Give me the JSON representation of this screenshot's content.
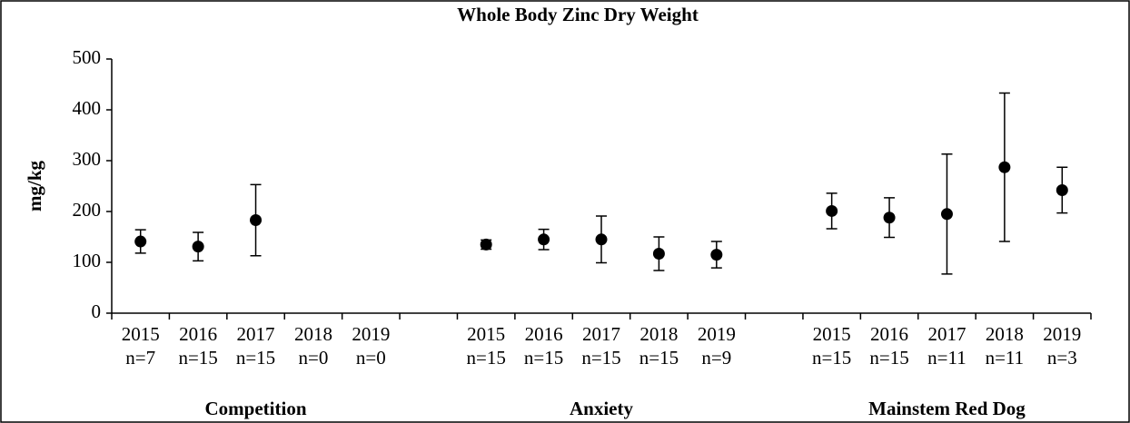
{
  "chart_data": {
    "type": "errorbar",
    "title": "Whole Body Zinc Dry Weight",
    "y_label": "mg/kg",
    "ylim": [
      0,
      500
    ],
    "yticks": [
      0,
      100,
      200,
      300,
      400,
      500
    ],
    "color": "#000000",
    "groups": [
      {
        "name": "Competition",
        "categories": [
          "2015",
          "2016",
          "2017",
          "2018",
          "2019"
        ],
        "n_labels": [
          "n=7",
          "n=15",
          "n=15",
          "n=0",
          "n=0"
        ],
        "values": [
          141,
          131,
          183,
          null,
          null
        ],
        "errors": [
          23,
          28,
          70,
          null,
          null
        ]
      },
      {
        "name": "Anxiety",
        "categories": [
          "2015",
          "2016",
          "2017",
          "2018",
          "2019"
        ],
        "n_labels": [
          "n=15",
          "n=15",
          "n=15",
          "n=15",
          "n=9"
        ],
        "values": [
          135,
          145,
          145,
          117,
          115
        ],
        "errors": [
          9,
          20,
          46,
          33,
          26
        ]
      },
      {
        "name": "Mainstem Red Dog",
        "categories": [
          "2015",
          "2016",
          "2017",
          "2018",
          "2019"
        ],
        "n_labels": [
          "n=15",
          "n=15",
          "n=11",
          "n=11",
          "n=3"
        ],
        "values": [
          201,
          188,
          195,
          287,
          242
        ],
        "errors": [
          35,
          39,
          118,
          146,
          45
        ]
      }
    ]
  }
}
